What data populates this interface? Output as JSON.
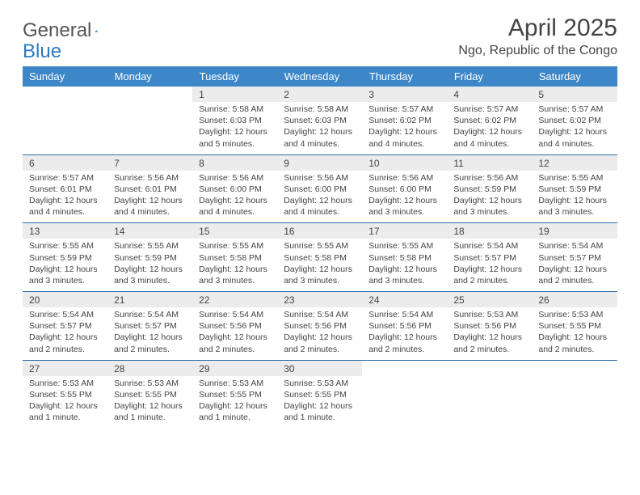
{
  "logo": {
    "text1": "General",
    "text2": "Blue"
  },
  "title": "April 2025",
  "location": "Ngo, Republic of the Congo",
  "colors": {
    "header_bg": "#3d87c9",
    "header_text": "#ffffff",
    "daynum_bg": "#ececec",
    "row_border": "#2a6aa6",
    "logo_gray": "#555555",
    "logo_blue": "#2a7ac0",
    "body_text": "#444444"
  },
  "day_headers": [
    "Sunday",
    "Monday",
    "Tuesday",
    "Wednesday",
    "Thursday",
    "Friday",
    "Saturday"
  ],
  "weeks": [
    [
      null,
      null,
      {
        "n": "1",
        "sr": "5:58 AM",
        "ss": "6:03 PM",
        "dl": "12 hours and 5 minutes."
      },
      {
        "n": "2",
        "sr": "5:58 AM",
        "ss": "6:03 PM",
        "dl": "12 hours and 4 minutes."
      },
      {
        "n": "3",
        "sr": "5:57 AM",
        "ss": "6:02 PM",
        "dl": "12 hours and 4 minutes."
      },
      {
        "n": "4",
        "sr": "5:57 AM",
        "ss": "6:02 PM",
        "dl": "12 hours and 4 minutes."
      },
      {
        "n": "5",
        "sr": "5:57 AM",
        "ss": "6:02 PM",
        "dl": "12 hours and 4 minutes."
      }
    ],
    [
      {
        "n": "6",
        "sr": "5:57 AM",
        "ss": "6:01 PM",
        "dl": "12 hours and 4 minutes."
      },
      {
        "n": "7",
        "sr": "5:56 AM",
        "ss": "6:01 PM",
        "dl": "12 hours and 4 minutes."
      },
      {
        "n": "8",
        "sr": "5:56 AM",
        "ss": "6:00 PM",
        "dl": "12 hours and 4 minutes."
      },
      {
        "n": "9",
        "sr": "5:56 AM",
        "ss": "6:00 PM",
        "dl": "12 hours and 4 minutes."
      },
      {
        "n": "10",
        "sr": "5:56 AM",
        "ss": "6:00 PM",
        "dl": "12 hours and 3 minutes."
      },
      {
        "n": "11",
        "sr": "5:56 AM",
        "ss": "5:59 PM",
        "dl": "12 hours and 3 minutes."
      },
      {
        "n": "12",
        "sr": "5:55 AM",
        "ss": "5:59 PM",
        "dl": "12 hours and 3 minutes."
      }
    ],
    [
      {
        "n": "13",
        "sr": "5:55 AM",
        "ss": "5:59 PM",
        "dl": "12 hours and 3 minutes."
      },
      {
        "n": "14",
        "sr": "5:55 AM",
        "ss": "5:59 PM",
        "dl": "12 hours and 3 minutes."
      },
      {
        "n": "15",
        "sr": "5:55 AM",
        "ss": "5:58 PM",
        "dl": "12 hours and 3 minutes."
      },
      {
        "n": "16",
        "sr": "5:55 AM",
        "ss": "5:58 PM",
        "dl": "12 hours and 3 minutes."
      },
      {
        "n": "17",
        "sr": "5:55 AM",
        "ss": "5:58 PM",
        "dl": "12 hours and 3 minutes."
      },
      {
        "n": "18",
        "sr": "5:54 AM",
        "ss": "5:57 PM",
        "dl": "12 hours and 2 minutes."
      },
      {
        "n": "19",
        "sr": "5:54 AM",
        "ss": "5:57 PM",
        "dl": "12 hours and 2 minutes."
      }
    ],
    [
      {
        "n": "20",
        "sr": "5:54 AM",
        "ss": "5:57 PM",
        "dl": "12 hours and 2 minutes."
      },
      {
        "n": "21",
        "sr": "5:54 AM",
        "ss": "5:57 PM",
        "dl": "12 hours and 2 minutes."
      },
      {
        "n": "22",
        "sr": "5:54 AM",
        "ss": "5:56 PM",
        "dl": "12 hours and 2 minutes."
      },
      {
        "n": "23",
        "sr": "5:54 AM",
        "ss": "5:56 PM",
        "dl": "12 hours and 2 minutes."
      },
      {
        "n": "24",
        "sr": "5:54 AM",
        "ss": "5:56 PM",
        "dl": "12 hours and 2 minutes."
      },
      {
        "n": "25",
        "sr": "5:53 AM",
        "ss": "5:56 PM",
        "dl": "12 hours and 2 minutes."
      },
      {
        "n": "26",
        "sr": "5:53 AM",
        "ss": "5:55 PM",
        "dl": "12 hours and 2 minutes."
      }
    ],
    [
      {
        "n": "27",
        "sr": "5:53 AM",
        "ss": "5:55 PM",
        "dl": "12 hours and 1 minute."
      },
      {
        "n": "28",
        "sr": "5:53 AM",
        "ss": "5:55 PM",
        "dl": "12 hours and 1 minute."
      },
      {
        "n": "29",
        "sr": "5:53 AM",
        "ss": "5:55 PM",
        "dl": "12 hours and 1 minute."
      },
      {
        "n": "30",
        "sr": "5:53 AM",
        "ss": "5:55 PM",
        "dl": "12 hours and 1 minute."
      },
      null,
      null,
      null
    ]
  ],
  "labels": {
    "sunrise": "Sunrise:",
    "sunset": "Sunset:",
    "daylight": "Daylight:"
  }
}
